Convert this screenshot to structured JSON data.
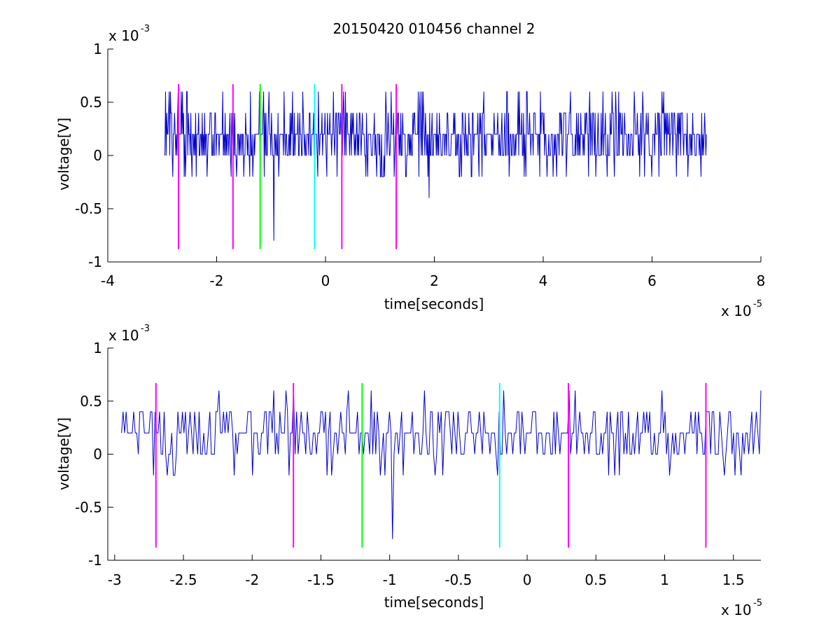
{
  "figure": {
    "title": "20150420 010456 channel 2",
    "background": "#ffffff",
    "trace_color": "#0000cc"
  },
  "chart_data": [
    {
      "type": "line",
      "title": "20150420 010456 channel 2",
      "xlabel": "time[seconds]",
      "ylabel": "voltage[V]",
      "x_multiplier": {
        "base": "x 10",
        "exponent": "-5"
      },
      "y_multiplier": {
        "base": "x 10",
        "exponent": "-3"
      },
      "xlim": [
        -4,
        8
      ],
      "ylim": [
        -1,
        1
      ],
      "xticks": [
        -4,
        -2,
        0,
        2,
        4,
        6,
        8
      ],
      "xtick_labels": [
        "-4",
        "-2",
        "0",
        "2",
        "4",
        "6",
        "8"
      ],
      "yticks": [
        -1,
        -0.5,
        0,
        0.5,
        1
      ],
      "ytick_labels": [
        "-1",
        "-0.5",
        "0",
        "0.5",
        "1"
      ],
      "grid": false,
      "series": [
        {
          "color": "#0000cc",
          "x_range": [
            -2.95,
            7.0
          ],
          "value_levels": [
            -0.8,
            -0.4,
            -0.2,
            0,
            0.2,
            0.4,
            0.6
          ],
          "baseline_level": 0.2,
          "notable_excursions": [
            {
              "x": -0.95,
              "y": -0.8
            },
            {
              "x": 1.9,
              "y": -0.4
            },
            {
              "x": 1.7,
              "y": 0.6
            },
            {
              "x": 3.7,
              "y": 0.6
            },
            {
              "x": 5.1,
              "y": 0.6
            },
            {
              "x": 7.0,
              "y": 0.2
            }
          ]
        }
      ],
      "markers": [
        {
          "x": -2.7,
          "y_range": [
            -0.88,
            0.67
          ],
          "color": "#ff00ff"
        },
        {
          "x": -1.7,
          "y_range": [
            -0.88,
            0.67
          ],
          "color": "#ff00ff"
        },
        {
          "x": -1.2,
          "y_range": [
            -0.88,
            0.67
          ],
          "color": "#00ff00"
        },
        {
          "x": -0.2,
          "y_range": [
            -0.88,
            0.67
          ],
          "color": "#00ffff"
        },
        {
          "x": 0.3,
          "y_range": [
            -0.88,
            0.67
          ],
          "color": "#ff00ff"
        },
        {
          "x": 1.3,
          "y_range": [
            -0.88,
            0.67
          ],
          "color": "#ff00ff"
        }
      ]
    },
    {
      "type": "line",
      "title": "",
      "xlabel": "time[seconds]",
      "ylabel": "voltage[V]",
      "x_multiplier": {
        "base": "x 10",
        "exponent": "-5"
      },
      "y_multiplier": {
        "base": "x 10",
        "exponent": "-3"
      },
      "xlim": [
        -3.05,
        1.7
      ],
      "ylim": [
        -1,
        1
      ],
      "xticks": [
        -3,
        -2.5,
        -2,
        -1.5,
        -1,
        -0.5,
        0,
        0.5,
        1,
        1.5
      ],
      "xtick_labels": [
        "-3",
        "-2.5",
        "-2",
        "-1.5",
        "-1",
        "-0.5",
        "0",
        "0.5",
        "1",
        "1.5"
      ],
      "yticks": [
        -1,
        -0.5,
        0,
        0.5,
        1
      ],
      "ytick_labels": [
        "-1",
        "-0.5",
        "0",
        "0.5",
        "1"
      ],
      "grid": false,
      "series": [
        {
          "color": "#0000cc",
          "x_range": [
            -2.95,
            1.7
          ],
          "value_levels": [
            -0.8,
            -0.2,
            0,
            0.2,
            0.4,
            0.6
          ],
          "baseline_level": 0.2,
          "notable_excursions": [
            {
              "x": -0.98,
              "y": -0.8
            },
            {
              "x": -2.8,
              "y": 0.4
            },
            {
              "x": 1.7,
              "y": 0.6
            }
          ]
        }
      ],
      "markers": [
        {
          "x": -2.7,
          "y_range": [
            -0.88,
            0.67
          ],
          "color": "#ff00ff"
        },
        {
          "x": -1.7,
          "y_range": [
            -0.88,
            0.67
          ],
          "color": "#ff00ff"
        },
        {
          "x": -1.2,
          "y_range": [
            -0.88,
            0.67
          ],
          "color": "#00ff00"
        },
        {
          "x": -0.2,
          "y_range": [
            -0.88,
            0.67
          ],
          "color": "#00ffff"
        },
        {
          "x": 0.3,
          "y_range": [
            -0.88,
            0.67
          ],
          "color": "#ff00ff"
        },
        {
          "x": 1.3,
          "y_range": [
            -0.88,
            0.67
          ],
          "color": "#ff00ff"
        }
      ]
    }
  ]
}
